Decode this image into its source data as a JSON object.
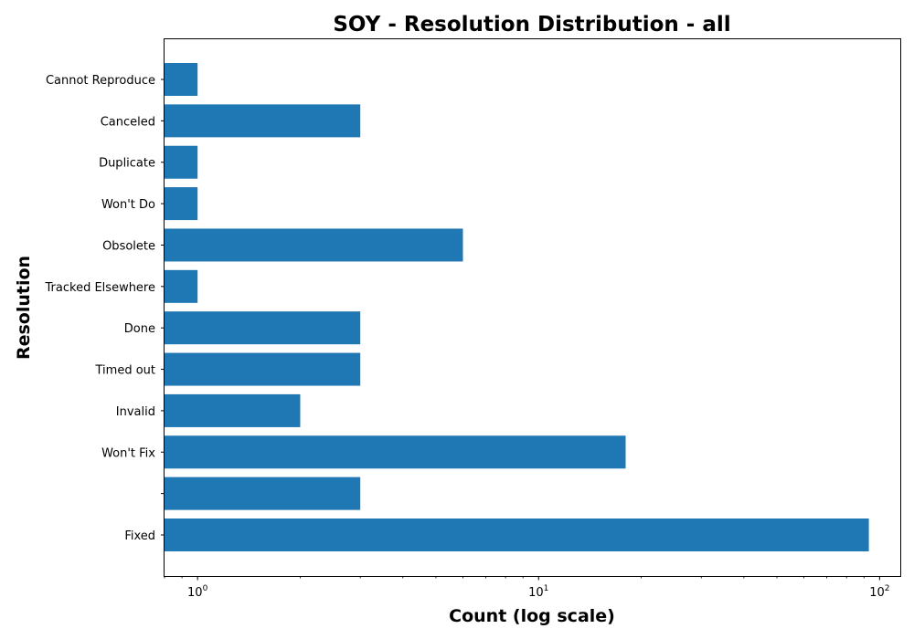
{
  "chart_data": {
    "type": "bar",
    "orientation": "horizontal",
    "title": "SOY - Resolution Distribution - all",
    "xlabel": "Count (log scale)",
    "ylabel": "Resolution",
    "x_scale": "log",
    "xlim": [
      0.8,
      115
    ],
    "x_tick_labels": [
      {
        "value": 1,
        "base": "10",
        "exp": "0"
      },
      {
        "value": 10,
        "base": "10",
        "exp": "1"
      },
      {
        "value": 100,
        "base": "10",
        "exp": "2"
      }
    ],
    "categories": [
      "Cannot Reproduce",
      "Canceled",
      "Duplicate",
      "Won't Do",
      "Obsolete",
      "Tracked Elsewhere",
      "Done",
      "Timed out",
      "Invalid",
      "Won't Fix",
      "",
      "Fixed"
    ],
    "values": [
      1,
      3,
      1,
      1,
      6,
      1,
      3,
      3,
      2,
      18,
      3,
      93
    ],
    "grid": false,
    "legend": "none",
    "colors": {
      "bar": "#1f77b4"
    }
  }
}
